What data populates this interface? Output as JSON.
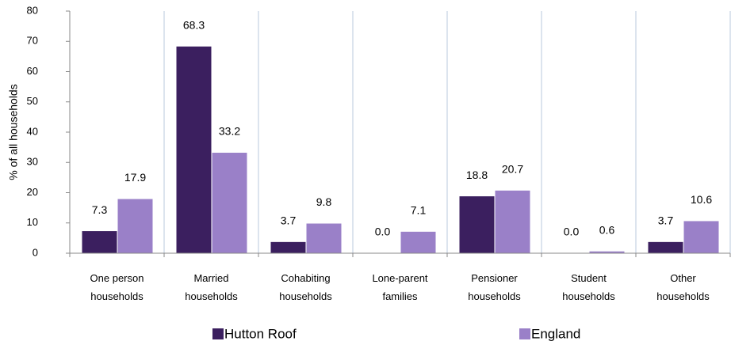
{
  "chart_data": {
    "type": "bar",
    "ylabel": "% of all households",
    "categories": [
      "One person\nhouseholds",
      "Married\nhouseholds",
      "Cohabiting\nhouseholds",
      "Lone-parent\nfamilies",
      "Pensioner\nhouseholds",
      "Student\nhouseholds",
      "Other\nhouseholds"
    ],
    "series": [
      {
        "name": "Hutton Roof",
        "color": "#3b1f5f",
        "values": [
          7.3,
          68.3,
          3.7,
          0,
          18.8,
          0,
          3.7
        ],
        "value_labels": [
          "7.3",
          "68.3",
          "3.7",
          "0.0",
          "18.8",
          "0.0",
          "3.7"
        ]
      },
      {
        "name": "England",
        "color": "#9a80c8",
        "values": [
          17.9,
          33.2,
          9.8,
          7.1,
          20.7,
          0.6,
          10.6
        ],
        "value_labels": [
          "17.9",
          "33.2",
          "9.8",
          "7.1",
          "20.7",
          "0.6",
          "10.6"
        ]
      }
    ],
    "ylim": [
      0,
      80
    ],
    "yticks": [
      0,
      10,
      20,
      30,
      40,
      50,
      60,
      70,
      80
    ],
    "grid": true,
    "legend": "bottom"
  }
}
